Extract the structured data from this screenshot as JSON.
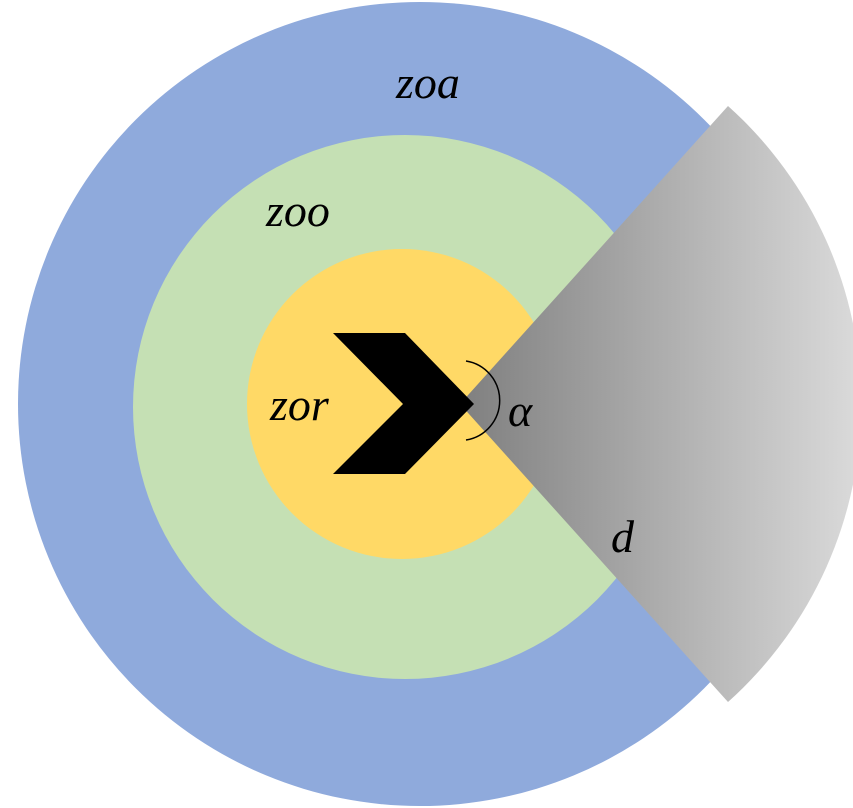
{
  "zones": {
    "zoa": {
      "label": "zoa",
      "color": "#8faadc"
    },
    "zoo": {
      "label": "zoo",
      "color": "#c5e0b4"
    },
    "zor": {
      "label": "zor",
      "color": "#ffd966"
    }
  },
  "blind_region": {
    "angle_label": "α",
    "distance_label": "d",
    "gradient": [
      "#7f7f7f",
      "#d9d9d9"
    ]
  },
  "agent": {
    "color": "#000000"
  }
}
